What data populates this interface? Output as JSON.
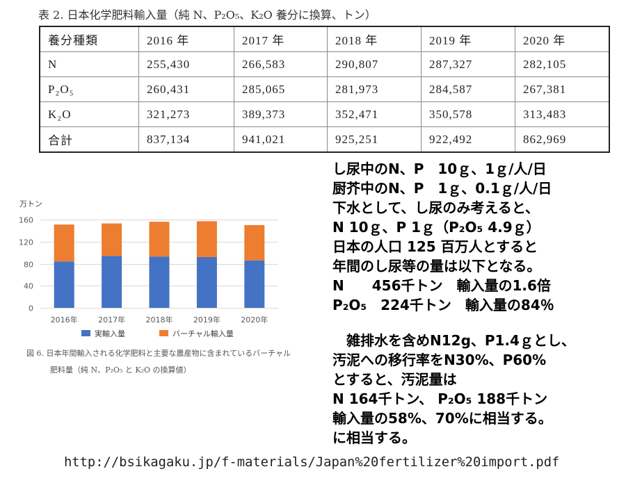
{
  "slide": {
    "table_title": "表 2. 日本化学肥料輸入量（純 N、P₂O₅、K₂O 養分に換算、トン）",
    "table": {
      "headers": [
        "養分種類",
        "2016 年",
        "2017 年",
        "2018 年",
        "2019 年",
        "2020 年"
      ],
      "rows": [
        [
          "N",
          "255,430",
          "266,583",
          "290,807",
          "287,327",
          "282,105"
        ],
        [
          "P₂O₅",
          "260,431",
          "285,065",
          "281,973",
          "284,587",
          "267,381"
        ],
        [
          "K₂O",
          "321,273",
          "389,373",
          "352,471",
          "350,578",
          "313,483"
        ],
        [
          "合計",
          "837,134",
          "941,021",
          "925,251",
          "922,492",
          "862,969"
        ]
      ]
    },
    "figure_caption": [
      "図 6. 日本年間輸入される化学肥料と主要な農産物に含まれているバーチャル",
      "肥料量（純 N、P₂O₅ と K₂O の換算値）"
    ],
    "notes": {
      "block1": [
        "し尿中のN、P　10ｇ、1ｇ/人/日",
        "厨芥中のN、P　1ｇ、0.1ｇ/人/日",
        "下水として、し尿のみ考えると、",
        "N 10ｇ、P 1ｇ（P₂O₅ 4.9ｇ）",
        "日本の人口 125 百万人とすると",
        "年間のし尿等の量は以下となる。",
        "N　　456千トン　輸入量の1.6倍",
        "P₂O₅　224千トン　輸入量の84％"
      ],
      "block2": [
        "　雑排水を含めN12g、P1.4ｇとし、",
        "汚泥への移行率をN30%、P60%",
        "とすると、汚泥量は",
        "N 164千トン、 P₂O₅ 188千トン",
        "輸入量の58%、70%に相当する。",
        "に相当する。"
      ]
    },
    "source_url": "http://bsikagaku.jp/f-materials/Japan%20fertilizer%20import.pdf"
  },
  "chart_data": {
    "type": "bar",
    "stacked": true,
    "categories": [
      "2016年",
      "2017年",
      "2018年",
      "2019年",
      "2020年"
    ],
    "series": [
      {
        "name": "実輸入量",
        "values": [
          84,
          94,
          93,
          92,
          86
        ],
        "color": "#4472C4"
      },
      {
        "name": "バーチャル輸入量",
        "values": [
          67,
          59,
          63,
          65,
          64
        ],
        "color": "#ED7D31"
      }
    ],
    "xlabel": "",
    "ylabel": "万トン",
    "ylim": [
      0,
      160
    ],
    "y_ticks": [
      0,
      40,
      80,
      120,
      160
    ],
    "grid": true,
    "legend": "bottom"
  }
}
